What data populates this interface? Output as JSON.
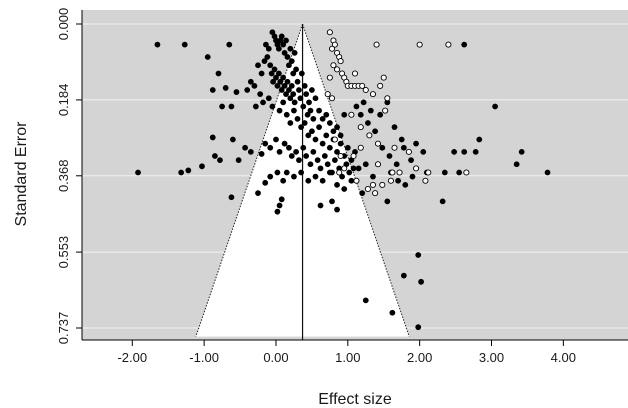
{
  "chart_data": {
    "type": "scatter",
    "subtype": "funnel-plot",
    "title": "",
    "xlabel": "Effect size",
    "ylabel": "Standard Error",
    "xlim": [
      -2.7,
      4.9
    ],
    "ylim": [
      0.737,
      0.0
    ],
    "y_axis_reversed": true,
    "x_ticks": [
      -2.0,
      -1.0,
      0.0,
      1.0,
      2.0,
      3.0,
      4.0
    ],
    "x_tick_labels": [
      "-2.00",
      "-1.00",
      "0.00",
      "1.00",
      "2.00",
      "3.00",
      "4.00"
    ],
    "y_ticks": [
      0.0,
      0.184,
      0.368,
      0.553,
      0.737
    ],
    "y_tick_labels": [
      "0.000",
      "0.184",
      "0.368",
      "0.553",
      "0.737"
    ],
    "grid": true,
    "background_color": "#d4d4d4",
    "funnel": {
      "center": 0.37,
      "z": 1.96,
      "fill_color": "#ffffff",
      "line_style": "dotted"
    },
    "colors": {
      "observed": "#000000",
      "imputed_fill": "#ffffff",
      "imputed_stroke": "#000000"
    },
    "series": [
      {
        "marker": "filled",
        "points": [
          [
            -1.65,
            0.05
          ],
          [
            -1.27,
            0.05
          ],
          [
            -0.65,
            0.05
          ],
          [
            -0.95,
            0.08
          ],
          [
            -1.92,
            0.36
          ],
          [
            -1.32,
            0.36
          ],
          [
            -1.22,
            0.355
          ],
          [
            -1.03,
            0.345
          ],
          [
            -0.8,
            0.12
          ],
          [
            -0.75,
            0.2
          ],
          [
            -0.62,
            0.2
          ],
          [
            -0.88,
            0.16
          ],
          [
            -0.55,
            0.165
          ],
          [
            -0.7,
            0.155
          ],
          [
            -0.85,
            0.32
          ],
          [
            -0.88,
            0.275
          ],
          [
            -0.78,
            0.33
          ],
          [
            -0.6,
            0.28
          ],
          [
            -0.52,
            0.33
          ],
          [
            -0.43,
            0.3
          ],
          [
            -0.35,
            0.31
          ],
          [
            -0.2,
            0.315
          ],
          [
            -0.62,
            0.42
          ],
          [
            -0.25,
            0.41
          ],
          [
            -0.15,
            0.385
          ],
          [
            0.05,
            0.44
          ],
          [
            0.08,
            0.425
          ],
          [
            0.02,
            0.455
          ],
          [
            -0.05,
            0.02
          ],
          [
            -0.02,
            0.03
          ],
          [
            0.0,
            0.04
          ],
          [
            0.02,
            0.05
          ],
          [
            0.04,
            0.06
          ],
          [
            0.06,
            0.04
          ],
          [
            0.08,
            0.03
          ],
          [
            0.1,
            0.05
          ],
          [
            0.12,
            0.07
          ],
          [
            0.14,
            0.04
          ],
          [
            0.16,
            0.08
          ],
          [
            0.18,
            0.1
          ],
          [
            0.2,
            0.06
          ],
          [
            0.22,
            0.09
          ],
          [
            0.24,
            0.12
          ],
          [
            0.26,
            0.07
          ],
          [
            0.28,
            0.11
          ],
          [
            -0.1,
            0.06
          ],
          [
            -0.12,
            0.08
          ],
          [
            -0.14,
            0.05
          ],
          [
            -0.16,
            0.09
          ],
          [
            -0.08,
            0.1
          ],
          [
            -0.06,
            0.12
          ],
          [
            -0.04,
            0.14
          ],
          [
            -0.02,
            0.11
          ],
          [
            0.0,
            0.13
          ],
          [
            0.02,
            0.15
          ],
          [
            0.04,
            0.12
          ],
          [
            0.06,
            0.14
          ],
          [
            0.08,
            0.16
          ],
          [
            0.1,
            0.13
          ],
          [
            0.12,
            0.15
          ],
          [
            0.14,
            0.17
          ],
          [
            0.16,
            0.14
          ],
          [
            0.18,
            0.16
          ],
          [
            0.2,
            0.18
          ],
          [
            0.22,
            0.15
          ],
          [
            0.24,
            0.17
          ],
          [
            0.26,
            0.19
          ],
          [
            0.3,
            0.14
          ],
          [
            0.32,
            0.16
          ],
          [
            0.34,
            0.18
          ],
          [
            0.36,
            0.12
          ],
          [
            0.38,
            0.2
          ],
          [
            0.4,
            0.15
          ],
          [
            0.42,
            0.17
          ],
          [
            0.44,
            0.22
          ],
          [
            0.46,
            0.19
          ],
          [
            0.48,
            0.21
          ],
          [
            0.5,
            0.16
          ],
          [
            0.52,
            0.23
          ],
          [
            0.55,
            0.18
          ],
          [
            -0.2,
            0.12
          ],
          [
            -0.25,
            0.1
          ],
          [
            -0.3,
            0.15
          ],
          [
            -0.35,
            0.14
          ],
          [
            -0.4,
            0.16
          ],
          [
            -0.22,
            0.17
          ],
          [
            -0.18,
            0.19
          ],
          [
            -0.28,
            0.2
          ],
          [
            -0.1,
            0.18
          ],
          [
            -0.05,
            0.2
          ],
          [
            0.05,
            0.21
          ],
          [
            0.1,
            0.19
          ],
          [
            0.15,
            0.22
          ],
          [
            0.2,
            0.24
          ],
          [
            0.25,
            0.21
          ],
          [
            0.3,
            0.23
          ],
          [
            0.35,
            0.25
          ],
          [
            0.4,
            0.24
          ],
          [
            0.45,
            0.27
          ],
          [
            0.5,
            0.26
          ],
          [
            0.55,
            0.28
          ],
          [
            0.6,
            0.25
          ],
          [
            0.65,
            0.29
          ],
          [
            0.7,
            0.27
          ],
          [
            0.75,
            0.3
          ],
          [
            0.8,
            0.28
          ],
          [
            0.85,
            0.31
          ],
          [
            0.9,
            0.29
          ],
          [
            0.95,
            0.32
          ],
          [
            1.0,
            0.3
          ],
          [
            1.05,
            0.33
          ],
          [
            1.1,
            0.31
          ],
          [
            0.6,
            0.21
          ],
          [
            0.65,
            0.23
          ],
          [
            0.7,
            0.22
          ],
          [
            0.75,
            0.24
          ],
          [
            0.8,
            0.26
          ],
          [
            0.85,
            0.25
          ],
          [
            0.9,
            0.27
          ],
          [
            0.95,
            0.22
          ],
          [
            -0.15,
            0.29
          ],
          [
            -0.08,
            0.3
          ],
          [
            0.0,
            0.28
          ],
          [
            0.05,
            0.31
          ],
          [
            0.12,
            0.29
          ],
          [
            0.18,
            0.3
          ],
          [
            0.22,
            0.32
          ],
          [
            0.28,
            0.31
          ],
          [
            0.32,
            0.33
          ],
          [
            0.38,
            0.3
          ],
          [
            0.42,
            0.32
          ],
          [
            0.48,
            0.34
          ],
          [
            0.52,
            0.31
          ],
          [
            0.58,
            0.33
          ],
          [
            0.62,
            0.35
          ],
          [
            0.68,
            0.32
          ],
          [
            0.72,
            0.34
          ],
          [
            0.78,
            0.36
          ],
          [
            0.82,
            0.33
          ],
          [
            0.88,
            0.35
          ],
          [
            0.92,
            0.37
          ],
          [
            0.98,
            0.34
          ],
          [
            1.02,
            0.36
          ],
          [
            1.08,
            0.35
          ],
          [
            -0.08,
            0.37
          ],
          [
            0.02,
            0.36
          ],
          [
            0.1,
            0.38
          ],
          [
            0.15,
            0.36
          ],
          [
            0.25,
            0.37
          ],
          [
            0.35,
            0.36
          ],
          [
            0.45,
            0.38
          ],
          [
            0.55,
            0.37
          ],
          [
            0.65,
            0.38
          ],
          [
            0.75,
            0.36
          ],
          [
            0.85,
            0.39
          ],
          [
            0.95,
            0.4
          ],
          [
            1.05,
            0.38
          ],
          [
            1.15,
            0.35
          ],
          [
            1.25,
            0.34
          ],
          [
            1.35,
            0.37
          ],
          [
            1.12,
            0.2
          ],
          [
            1.18,
            0.22
          ],
          [
            1.22,
            0.19
          ],
          [
            1.28,
            0.24
          ],
          [
            1.32,
            0.21
          ],
          [
            1.38,
            0.26
          ],
          [
            1.45,
            0.22
          ],
          [
            1.55,
            0.19
          ],
          [
            1.65,
            0.25
          ],
          [
            1.75,
            0.28
          ],
          [
            1.48,
            0.3
          ],
          [
            1.58,
            0.32
          ],
          [
            1.68,
            0.34
          ],
          [
            1.78,
            0.3
          ],
          [
            1.88,
            0.33
          ],
          [
            1.95,
            0.29
          ],
          [
            2.05,
            0.31
          ],
          [
            1.6,
            0.36
          ],
          [
            1.7,
            0.38
          ],
          [
            1.8,
            0.39
          ],
          [
            1.9,
            0.37
          ],
          [
            2.1,
            0.36
          ],
          [
            2.35,
            0.36
          ],
          [
            2.55,
            0.36
          ],
          [
            2.62,
            0.05
          ],
          [
            3.05,
            0.2
          ],
          [
            2.83,
            0.28
          ],
          [
            2.78,
            0.31
          ],
          [
            2.62,
            0.31
          ],
          [
            2.48,
            0.31
          ],
          [
            3.35,
            0.34
          ],
          [
            3.42,
            0.31
          ],
          [
            3.78,
            0.36
          ],
          [
            2.32,
            0.43
          ],
          [
            0.62,
            0.44
          ],
          [
            0.85,
            0.45
          ],
          [
            1.2,
            0.41
          ],
          [
            0.78,
            0.43
          ],
          [
            1.55,
            0.43
          ],
          [
            1.25,
            0.67
          ],
          [
            1.62,
            0.7
          ],
          [
            1.78,
            0.61
          ],
          [
            1.98,
            0.56
          ],
          [
            2.02,
            0.625
          ],
          [
            1.98,
            0.735
          ]
        ]
      },
      {
        "marker": "open",
        "points": [
          [
            0.75,
            0.02
          ],
          [
            0.8,
            0.04
          ],
          [
            0.82,
            0.05
          ],
          [
            0.78,
            0.06
          ],
          [
            0.85,
            0.07
          ],
          [
            0.88,
            0.08
          ],
          [
            0.9,
            0.09
          ],
          [
            0.8,
            0.1
          ],
          [
            0.85,
            0.11
          ],
          [
            0.92,
            0.12
          ],
          [
            0.95,
            0.13
          ],
          [
            0.98,
            0.14
          ],
          [
            1.0,
            0.15
          ],
          [
            1.05,
            0.15
          ],
          [
            1.1,
            0.15
          ],
          [
            1.15,
            0.15
          ],
          [
            1.2,
            0.15
          ],
          [
            1.25,
            0.16
          ],
          [
            1.35,
            0.17
          ],
          [
            1.45,
            0.15
          ],
          [
            1.55,
            0.18
          ],
          [
            0.75,
            0.13
          ],
          [
            0.78,
            0.18
          ],
          [
            0.72,
            0.17
          ],
          [
            1.4,
            0.05
          ],
          [
            2.0,
            0.05
          ],
          [
            2.4,
            0.05
          ],
          [
            1.1,
            0.12
          ],
          [
            1.5,
            0.13
          ],
          [
            1.05,
            0.22
          ],
          [
            1.18,
            0.25
          ],
          [
            1.3,
            0.27
          ],
          [
            1.52,
            0.21
          ],
          [
            1.65,
            0.3
          ],
          [
            1.85,
            0.31
          ],
          [
            1.42,
            0.34
          ],
          [
            1.95,
            0.35
          ],
          [
            1.72,
            0.36
          ],
          [
            2.12,
            0.36
          ],
          [
            2.65,
            0.36
          ],
          [
            1.35,
            0.39
          ],
          [
            1.6,
            0.38
          ],
          [
            1.62,
            0.36
          ],
          [
            1.28,
            0.4
          ],
          [
            0.88,
            0.36
          ],
          [
            0.95,
            0.35
          ],
          [
            1.12,
            0.38
          ],
          [
            1.38,
            0.41
          ],
          [
            1.42,
            0.29
          ],
          [
            1.08,
            0.32
          ],
          [
            0.82,
            0.28
          ],
          [
            0.9,
            0.32
          ],
          [
            1.18,
            0.3
          ],
          [
            1.48,
            0.39
          ],
          [
            2.08,
            0.38
          ]
        ]
      }
    ]
  }
}
